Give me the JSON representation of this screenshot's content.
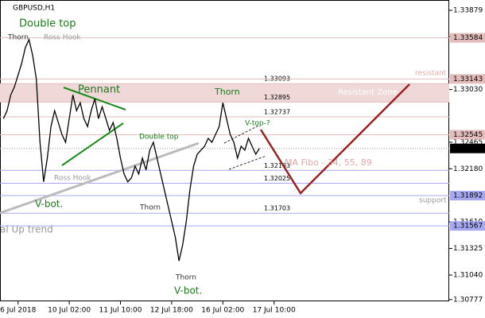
{
  "chart_data": {
    "type": "line",
    "title": "GBPUSD,H1",
    "categories": [
      null,
      null,
      null,
      null,
      "6 Jul 2018",
      null,
      null,
      null,
      null,
      null,
      null,
      null,
      null,
      null,
      null,
      null,
      null,
      null,
      "10 Jul 02:00",
      null,
      null,
      null,
      null,
      null,
      null,
      null,
      null,
      null,
      null,
      null,
      null,
      null,
      "11 Jul 10:00",
      null,
      null,
      null,
      null,
      null,
      null,
      null,
      null,
      null,
      null,
      null,
      null,
      null,
      "12 Jul 18:00",
      null,
      null,
      null,
      null,
      null,
      null,
      null,
      null,
      null,
      null,
      null,
      null,
      null,
      "16 Jul 02:00",
      null,
      null,
      null,
      null,
      null,
      null,
      null,
      null,
      null,
      null,
      null,
      null,
      null,
      "17 Jul 10:00"
    ],
    "values": [
      1.32718,
      1.32803,
      1.32972,
      1.33057,
      1.33184,
      1.33312,
      1.33481,
      1.33566,
      1.33396,
      1.33142,
      1.32464,
      1.3204,
      1.32294,
      1.32633,
      1.32803,
      1.32676,
      1.32548,
      1.32464,
      1.32718,
      1.32972,
      1.32803,
      1.32888,
      1.32718,
      1.32633,
      1.32803,
      1.3293,
      1.32718,
      1.32845,
      1.32718,
      1.32591,
      1.32676,
      1.32506,
      1.32294,
      1.32124,
      1.3204,
      1.32082,
      1.32209,
      1.32124,
      1.32294,
      1.32167,
      1.32379,
      1.32464,
      1.32294,
      1.32124,
      1.31955,
      1.31785,
      1.31616,
      1.31446,
      1.31192,
      1.31361,
      1.31616,
      1.31955,
      1.32209,
      1.32336,
      1.32379,
      1.32421,
      1.32506,
      1.32464,
      1.32548,
      1.32633,
      1.32888,
      1.32718,
      1.32548,
      1.32464,
      1.32294,
      1.32421,
      1.32379,
      1.32506,
      1.32421,
      1.32336,
      1.32398,
      null,
      null,
      null,
      null
    ],
    "color": "#000000",
    "ylim": [
      1.3075,
      1.3399
    ],
    "yticks": [
      1.33879,
      1.33595,
      {
        "value": 1.3303,
        "label": "1.33030"
      },
      1.32465,
      {
        "value": 1.3218,
        "label": "1.32180"
      },
      {
        "value": 1.3161,
        "label": "1.31610"
      },
      1.31325,
      {
        "value": 1.3104,
        "label": "1.31040"
      },
      1.30777
    ],
    "axis_levels": [
      {
        "value": 1.33584,
        "color": "#e3bcbc"
      },
      {
        "value": 1.33143,
        "color": "#e3bcbc"
      },
      {
        "value": 1.32545,
        "color": "#e3bcbc"
      },
      {
        "value": 1.31892,
        "color": "#a8a8f0"
      },
      {
        "value": 1.31567,
        "color": "#a8a8f0"
      }
    ],
    "line_levels": [
      {
        "value": 1.33093,
        "color": "#e3bcbc"
      },
      {
        "value": 1.32895,
        "color": "#e3bcbc"
      },
      {
        "value": 1.32737,
        "color": "#e3bcbc"
      },
      {
        "value": 1.32163,
        "color": "#a8a8f0"
      },
      {
        "value": 1.32025,
        "color": "#a8a8f0"
      },
      {
        "value": 1.31703,
        "color": "#a8a8f0"
      }
    ],
    "zone_color": "#f0d8d8",
    "last_price": 1.32398,
    "annotations": [
      "Double top",
      "Thorn",
      "Ross Hook",
      "Pennant",
      "Thorn",
      "V-top-?",
      "Resistant Zone",
      "resistant",
      "Double top",
      "MA Fibo - 34, 55, 89",
      "Ross Hook",
      "V-bot.",
      "Thorn",
      "support",
      "al Up trend",
      "Thorn",
      "V-bot."
    ]
  }
}
